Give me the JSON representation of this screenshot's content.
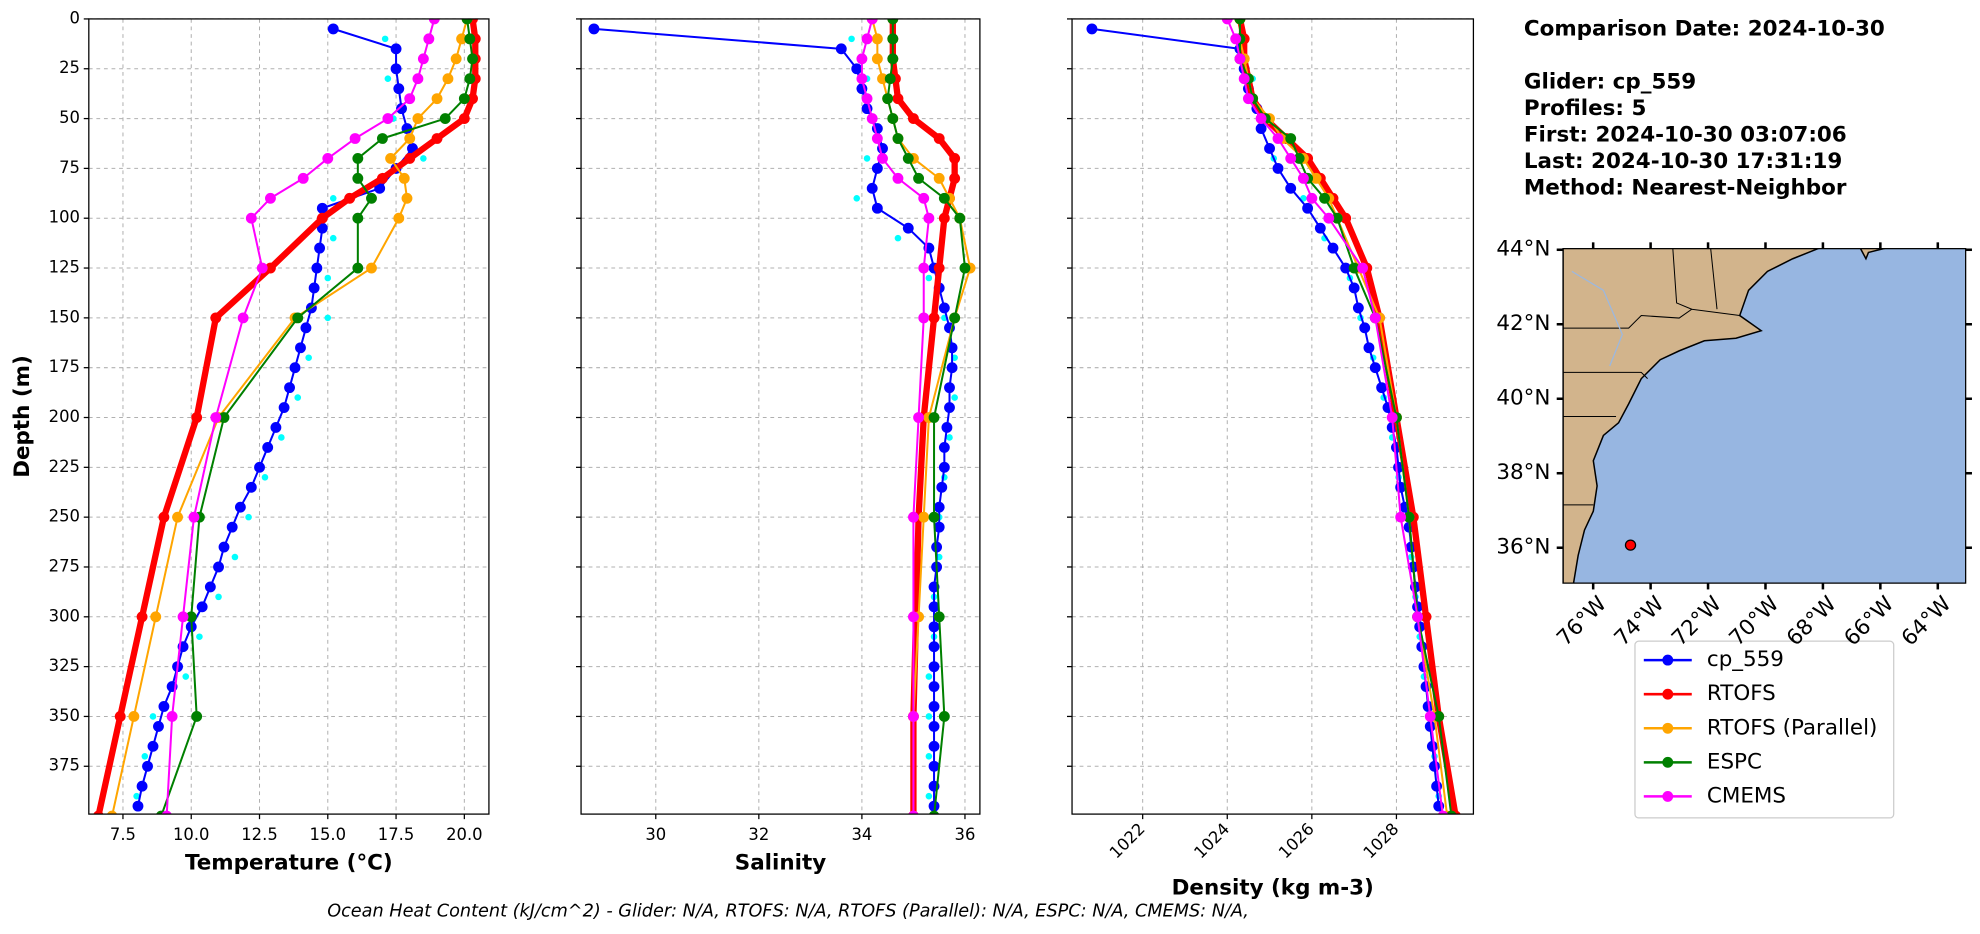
{
  "chart_data": [
    {
      "type": "profile",
      "xlabel": "Temperature (°C)",
      "ylabel": "Depth (m)",
      "xlim": [
        6.25,
        20.9
      ],
      "ylim": [
        0,
        399
      ],
      "xticks": [
        7.5,
        {
          "value": 10,
          "label": "10.0"
        },
        12.5,
        {
          "value": 15,
          "label": "15.0"
        },
        17.5,
        {
          "value": 20,
          "label": "20.0"
        }
      ],
      "yticks": [
        0,
        25,
        50,
        75,
        100,
        125,
        150,
        175,
        200,
        225,
        250,
        275,
        300,
        325,
        350,
        375
      ],
      "ytick_labels": true,
      "grid": true,
      "depth": [
        0,
        10,
        20,
        30,
        40,
        50,
        60,
        70,
        80,
        90,
        100,
        125,
        150,
        200,
        250,
        300,
        350,
        400
      ],
      "scatter": {
        "color": "#00ffff",
        "depth": [
          10,
          30,
          50,
          70,
          90,
          110,
          130,
          150,
          170,
          190,
          210,
          230,
          250,
          270,
          290,
          310,
          330,
          350,
          370,
          390
        ],
        "values": [
          17.1,
          17.2,
          17.4,
          18.5,
          15.2,
          15.2,
          15.0,
          15.0,
          14.3,
          13.9,
          13.3,
          12.7,
          12.1,
          11.6,
          11.0,
          10.3,
          9.8,
          8.6,
          8.3,
          8.0
        ]
      },
      "series": [
        {
          "name": "cp_559",
          "color": "#0000ff",
          "depth": [
            5,
            15,
            25,
            35,
            45,
            55,
            65,
            75,
            85,
            95,
            105,
            115,
            125,
            135,
            145,
            155,
            165,
            175,
            185,
            195,
            205,
            215,
            225,
            235,
            245,
            255,
            265,
            275,
            285,
            295,
            305,
            315,
            325,
            335,
            345,
            355,
            365,
            375,
            385,
            395
          ],
          "values": [
            15.2,
            17.5,
            17.5,
            17.6,
            17.7,
            17.9,
            18.1,
            17.5,
            16.9,
            14.8,
            14.8,
            14.7,
            14.6,
            14.5,
            14.4,
            14.2,
            14.0,
            13.8,
            13.6,
            13.4,
            13.1,
            12.8,
            12.5,
            12.2,
            11.8,
            11.5,
            11.2,
            11.0,
            10.7,
            10.4,
            10.0,
            9.7,
            9.5,
            9.3,
            9.0,
            8.8,
            8.6,
            8.4,
            8.2,
            8.05
          ]
        },
        {
          "name": "RTOFS",
          "color": "#ff0000",
          "linewidth": 5,
          "values": [
            20.3,
            20.4,
            20.4,
            20.4,
            20.3,
            20.0,
            19.0,
            18.0,
            17.0,
            15.8,
            14.8,
            12.9,
            10.9,
            10.2,
            9.0,
            8.2,
            7.4,
            6.6
          ]
        },
        {
          "name": "RTOFS (Parallel)",
          "color": "#ffa500",
          "values": [
            20.1,
            19.9,
            19.7,
            19.4,
            19.0,
            18.3,
            18.0,
            17.3,
            17.8,
            17.9,
            17.6,
            16.6,
            13.8,
            11.0,
            9.5,
            8.7,
            7.9,
            7.1
          ]
        },
        {
          "name": "ESPC",
          "color": "#008000",
          "values": [
            20.1,
            20.2,
            20.3,
            20.2,
            20.0,
            19.3,
            17.0,
            16.1,
            16.1,
            16.6,
            16.1,
            16.1,
            13.9,
            11.2,
            10.3,
            10.0,
            10.2,
            8.9
          ]
        },
        {
          "name": "CMEMS",
          "color": "#ff00ff",
          "values": [
            18.9,
            18.7,
            18.5,
            18.3,
            18.0,
            17.2,
            16.0,
            15.0,
            14.1,
            12.9,
            12.2,
            12.6,
            11.9,
            10.9,
            10.1,
            9.7,
            9.3,
            9.1
          ]
        }
      ]
    },
    {
      "type": "profile",
      "xlabel": "Salinity",
      "xlim": [
        28.55,
        36.29
      ],
      "ylim": [
        0,
        399
      ],
      "xticks": [
        30,
        32,
        34,
        36
      ],
      "yticks": [
        0,
        25,
        50,
        75,
        100,
        125,
        150,
        175,
        200,
        225,
        250,
        275,
        300,
        325,
        350,
        375
      ],
      "ytick_labels": false,
      "grid": true,
      "depth": [
        0,
        10,
        20,
        30,
        40,
        50,
        60,
        70,
        80,
        90,
        100,
        125,
        150,
        200,
        250,
        300,
        350,
        400
      ],
      "scatter": {
        "color": "#00ffff",
        "depth": [
          10,
          30,
          50,
          70,
          90,
          110,
          130,
          150,
          170,
          190,
          210,
          230,
          250,
          270,
          290,
          310,
          330,
          350,
          370,
          390
        ],
        "values": [
          33.8,
          34.1,
          34.2,
          34.1,
          33.9,
          34.7,
          35.3,
          35.6,
          35.8,
          35.8,
          35.7,
          35.6,
          35.5,
          35.5,
          35.4,
          35.4,
          35.3,
          35.3,
          35.3,
          35.3
        ]
      },
      "series": [
        {
          "color": "#0000ff",
          "depth": [
            5,
            15,
            25,
            35,
            45,
            55,
            65,
            75,
            85,
            95,
            105,
            115,
            125,
            135,
            145,
            155,
            165,
            175,
            185,
            195,
            205,
            215,
            225,
            235,
            245,
            255,
            265,
            275,
            285,
            295,
            305,
            315,
            325,
            335,
            345,
            355,
            365,
            375,
            385,
            395
          ],
          "values": [
            28.8,
            33.6,
            33.9,
            34.0,
            34.1,
            34.3,
            34.4,
            34.3,
            34.2,
            34.3,
            34.9,
            35.3,
            35.4,
            35.5,
            35.6,
            35.7,
            35.75,
            35.75,
            35.7,
            35.7,
            35.65,
            35.6,
            35.6,
            35.55,
            35.5,
            35.5,
            35.45,
            35.45,
            35.4,
            35.4,
            35.4,
            35.4,
            35.4,
            35.4,
            35.4,
            35.4,
            35.4,
            35.4,
            35.4,
            35.4
          ]
        },
        {
          "color": "#ff0000",
          "linewidth": 5,
          "values": [
            34.6,
            34.6,
            34.6,
            34.65,
            34.7,
            35.0,
            35.5,
            35.8,
            35.8,
            35.7,
            35.6,
            35.5,
            35.4,
            35.2,
            35.1,
            35.05,
            35.0,
            35.0
          ]
        },
        {
          "color": "#ffa500",
          "values": [
            34.2,
            34.3,
            34.3,
            34.4,
            34.5,
            34.6,
            34.7,
            35.0,
            35.5,
            35.7,
            35.9,
            36.1,
            35.8,
            35.3,
            35.2,
            35.1,
            35.0,
            35.0
          ]
        },
        {
          "color": "#008000",
          "values": [
            34.6,
            34.6,
            34.6,
            34.55,
            34.5,
            34.6,
            34.7,
            34.9,
            35.1,
            35.6,
            35.9,
            36.0,
            35.8,
            35.4,
            35.4,
            35.5,
            35.6,
            35.4
          ]
        },
        {
          "color": "#ff00ff",
          "values": [
            34.2,
            34.1,
            34.0,
            34.0,
            34.1,
            34.2,
            34.3,
            34.4,
            34.7,
            35.2,
            35.3,
            35.2,
            35.2,
            35.1,
            35.0,
            35.0,
            35.0,
            35.0
          ]
        }
      ]
    },
    {
      "type": "profile",
      "xlabel": "Density (kg m-3)",
      "xlim": [
        1020.33,
        1029.82
      ],
      "ylim": [
        0,
        399
      ],
      "xticks": [
        1022,
        1024,
        1026,
        1028
      ],
      "xtick_rotation": 45,
      "yticks": [
        0,
        25,
        50,
        75,
        100,
        125,
        150,
        175,
        200,
        225,
        250,
        275,
        300,
        325,
        350,
        375
      ],
      "ytick_labels": false,
      "grid": true,
      "depth": [
        0,
        10,
        20,
        30,
        40,
        50,
        60,
        70,
        80,
        90,
        100,
        125,
        150,
        200,
        250,
        300,
        350,
        400
      ],
      "scatter": {
        "color": "#00ffff",
        "depth": [
          10,
          30,
          50,
          70,
          90,
          110,
          130,
          150,
          170,
          190,
          210,
          230,
          250,
          270,
          290,
          310,
          330,
          350,
          370,
          390
        ],
        "values": [
          1024.4,
          1024.6,
          1024.8,
          1025.1,
          1025.8,
          1026.3,
          1026.9,
          1027.15,
          1027.45,
          1027.7,
          1027.9,
          1028.05,
          1028.2,
          1028.35,
          1028.45,
          1028.55,
          1028.65,
          1028.8,
          1028.9,
          1029.0
        ]
      },
      "series": [
        {
          "color": "#0000ff",
          "depth": [
            5,
            15,
            25,
            35,
            45,
            55,
            65,
            75,
            85,
            95,
            105,
            115,
            125,
            135,
            145,
            155,
            165,
            175,
            185,
            195,
            205,
            215,
            225,
            235,
            245,
            255,
            265,
            275,
            285,
            295,
            305,
            315,
            325,
            335,
            345,
            355,
            365,
            375,
            385,
            395
          ],
          "values": [
            1020.8,
            1024.3,
            1024.4,
            1024.5,
            1024.7,
            1024.8,
            1025.0,
            1025.2,
            1025.5,
            1025.9,
            1026.2,
            1026.5,
            1026.8,
            1027.0,
            1027.1,
            1027.25,
            1027.35,
            1027.5,
            1027.65,
            1027.8,
            1027.9,
            1028.0,
            1028.05,
            1028.1,
            1028.2,
            1028.3,
            1028.35,
            1028.4,
            1028.45,
            1028.5,
            1028.55,
            1028.6,
            1028.65,
            1028.7,
            1028.75,
            1028.8,
            1028.85,
            1028.9,
            1028.95,
            1029.0
          ]
        },
        {
          "color": "#ff0000",
          "linewidth": 5,
          "values": [
            1024.3,
            1024.4,
            1024.4,
            1024.5,
            1024.6,
            1024.9,
            1025.4,
            1025.9,
            1026.2,
            1026.5,
            1026.8,
            1027.3,
            1027.6,
            1028.0,
            1028.4,
            1028.7,
            1029.0,
            1029.4
          ]
        },
        {
          "color": "#ffa500",
          "values": [
            1024.3,
            1024.3,
            1024.4,
            1024.5,
            1024.6,
            1025.0,
            1025.3,
            1025.8,
            1026.1,
            1026.4,
            1026.6,
            1027.1,
            1027.6,
            1028.0,
            1028.3,
            1028.5,
            1028.9,
            1029.2
          ]
        },
        {
          "color": "#008000",
          "values": [
            1024.3,
            1024.3,
            1024.3,
            1024.5,
            1024.6,
            1024.9,
            1025.5,
            1025.7,
            1025.9,
            1026.3,
            1026.6,
            1027.0,
            1027.5,
            1028.0,
            1028.3,
            1028.5,
            1029.0,
            1029.3
          ]
        },
        {
          "color": "#ff00ff",
          "values": [
            1024.0,
            1024.2,
            1024.3,
            1024.4,
            1024.5,
            1024.8,
            1025.2,
            1025.5,
            1025.8,
            1026.0,
            1026.4,
            1027.2,
            1027.5,
            1027.9,
            1028.1,
            1028.5,
            1028.8,
            1029.1
          ]
        }
      ]
    },
    {
      "type": "map",
      "xlim": [
        -77.05,
        -63.03
      ],
      "ylim": [
        35.05,
        44.03
      ],
      "xticks": [
        {
          "value": -76,
          "label": "76°W"
        },
        {
          "value": -74,
          "label": "74°W"
        },
        {
          "value": -72,
          "label": "72°W"
        },
        {
          "value": -70,
          "label": "70°W"
        },
        {
          "value": -68,
          "label": "68°W"
        },
        {
          "value": -66,
          "label": "66°W"
        },
        {
          "value": -64,
          "label": "64°W"
        }
      ],
      "yticks": [
        {
          "value": 36,
          "label": "36°N"
        },
        {
          "value": 38,
          "label": "38°N"
        },
        {
          "value": 40,
          "label": "40°N"
        },
        {
          "value": 42,
          "label": "42°N"
        },
        {
          "value": 44,
          "label": "44°N"
        }
      ],
      "points": {
        "lon": [
          -74.7
        ],
        "lat": [
          36.07
        ]
      },
      "color": "#ff0000"
    }
  ],
  "info": [
    "Comparison Date: 2024-10-30",
    "Glider: cp_559",
    "Profiles: 5",
    "First: 2024-10-30 03:07:06",
    "Last: 2024-10-30 17:31:19",
    "Method: Nearest-Neighbor"
  ],
  "footer": "Ocean Heat Content (kJ/cm^2) - Glider: N/A,  RTOFS: N/A,  RTOFS (Parallel): N/A,  ESPC: N/A,  CMEMS: N/A,"
}
